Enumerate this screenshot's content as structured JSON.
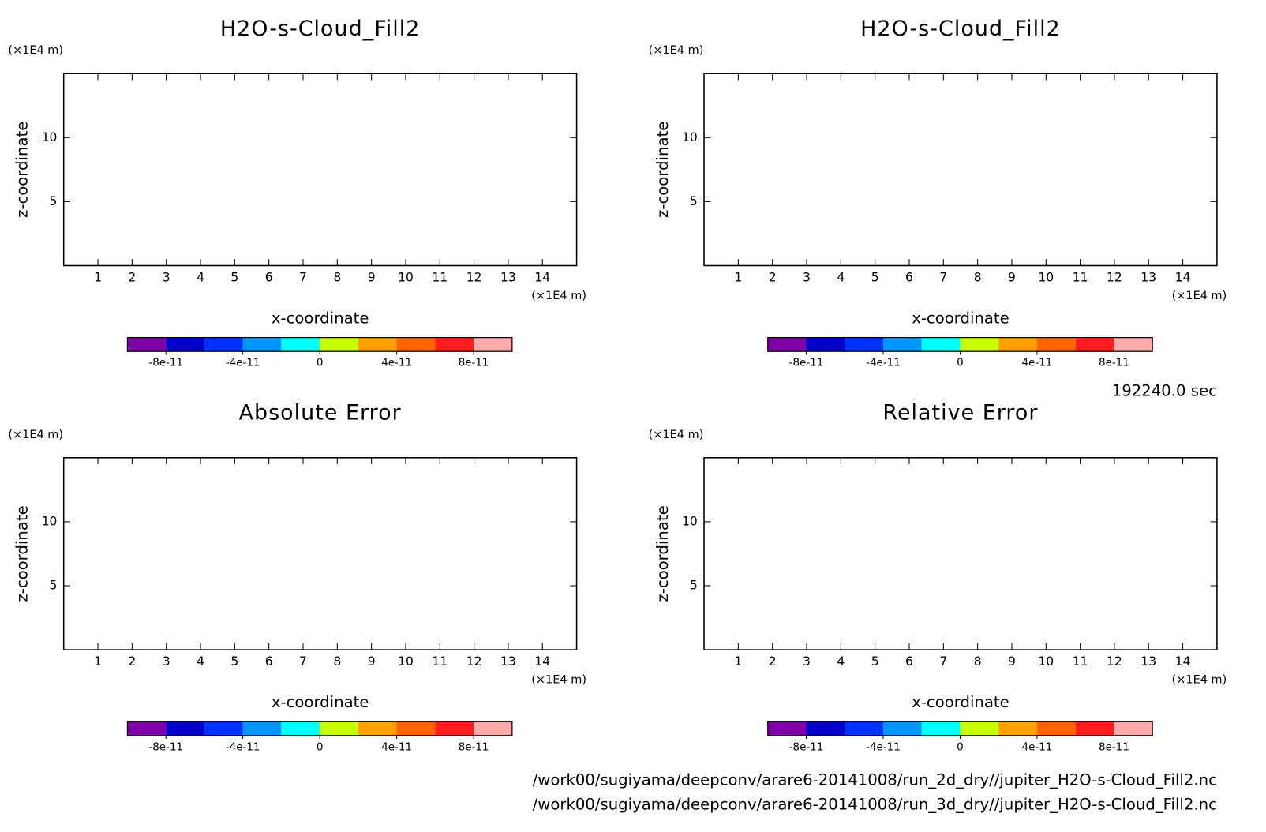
{
  "chart_data": [
    {
      "type": "contour",
      "title": "H2O-s-Cloud_Fill2",
      "xlabel": "x-coordinate",
      "ylabel": "z-coordinate",
      "x_unit": "(×1E4 m)",
      "y_unit": "(×1E4 m)",
      "xlim": [
        0,
        15
      ],
      "ylim": [
        0,
        15
      ],
      "xticks": [
        1,
        2,
        3,
        4,
        5,
        6,
        7,
        8,
        9,
        10,
        11,
        12,
        13,
        14
      ],
      "yticks": [
        5,
        10
      ],
      "colorbar": {
        "levels": [
          -1e-10,
          -8e-11,
          -6e-11,
          -4e-11,
          -2e-11,
          0,
          2e-11,
          4e-11,
          6e-11,
          8e-11,
          1e-10
        ],
        "colors": [
          "#8000a8",
          "#0000c8",
          "#0032ff",
          "#0096ff",
          "#00ffff",
          "#c8ff00",
          "#ffa000",
          "#ff6400",
          "#ff1e1e",
          "#ffaaaa"
        ],
        "ticks": [
          {
            "value": -8e-11,
            "label": "-8e-11"
          },
          {
            "value": -4e-11,
            "label": "-4e-11"
          },
          0,
          {
            "value": 4e-11,
            "label": "4e-11"
          },
          {
            "value": 8e-11,
            "label": "8e-11"
          }
        ]
      }
    },
    {
      "type": "contour",
      "title": "H2O-s-Cloud_Fill2",
      "xlabel": "x-coordinate",
      "ylabel": "z-coordinate",
      "x_unit": "(×1E4 m)",
      "y_unit": "(×1E4 m)",
      "xlim": [
        0,
        15
      ],
      "ylim": [
        0,
        15
      ],
      "xticks": [
        1,
        2,
        3,
        4,
        5,
        6,
        7,
        8,
        9,
        10,
        11,
        12,
        13,
        14
      ],
      "yticks": [
        5,
        10
      ],
      "colorbar": {
        "levels": [
          -1e-10,
          -8e-11,
          -6e-11,
          -4e-11,
          -2e-11,
          0,
          2e-11,
          4e-11,
          6e-11,
          8e-11,
          1e-10
        ],
        "colors": [
          "#8000a8",
          "#0000c8",
          "#0032ff",
          "#0096ff",
          "#00ffff",
          "#c8ff00",
          "#ffa000",
          "#ff6400",
          "#ff1e1e",
          "#ffaaaa"
        ],
        "ticks": [
          {
            "value": -8e-11,
            "label": "-8e-11"
          },
          {
            "value": -4e-11,
            "label": "-4e-11"
          },
          0,
          {
            "value": 4e-11,
            "label": "4e-11"
          },
          {
            "value": 8e-11,
            "label": "8e-11"
          }
        ]
      }
    },
    {
      "type": "contour",
      "title": "Absolute Error",
      "xlabel": "x-coordinate",
      "ylabel": "z-coordinate",
      "x_unit": "(×1E4 m)",
      "y_unit": "(×1E4 m)",
      "xlim": [
        0,
        15
      ],
      "ylim": [
        0,
        15
      ],
      "xticks": [
        1,
        2,
        3,
        4,
        5,
        6,
        7,
        8,
        9,
        10,
        11,
        12,
        13,
        14
      ],
      "yticks": [
        5,
        10
      ],
      "colorbar": {
        "levels": [
          -1e-10,
          -8e-11,
          -6e-11,
          -4e-11,
          -2e-11,
          0,
          2e-11,
          4e-11,
          6e-11,
          8e-11,
          1e-10
        ],
        "colors": [
          "#8000a8",
          "#0000c8",
          "#0032ff",
          "#0096ff",
          "#00ffff",
          "#c8ff00",
          "#ffa000",
          "#ff6400",
          "#ff1e1e",
          "#ffaaaa"
        ],
        "ticks": [
          {
            "value": -8e-11,
            "label": "-8e-11"
          },
          {
            "value": -4e-11,
            "label": "-4e-11"
          },
          0,
          {
            "value": 4e-11,
            "label": "4e-11"
          },
          {
            "value": 8e-11,
            "label": "8e-11"
          }
        ]
      }
    },
    {
      "type": "contour",
      "title": "Relative Error",
      "xlabel": "x-coordinate",
      "ylabel": "z-coordinate",
      "x_unit": "(×1E4 m)",
      "y_unit": "(×1E4 m)",
      "xlim": [
        0,
        15
      ],
      "ylim": [
        0,
        15
      ],
      "xticks": [
        1,
        2,
        3,
        4,
        5,
        6,
        7,
        8,
        9,
        10,
        11,
        12,
        13,
        14
      ],
      "yticks": [
        5,
        10
      ],
      "colorbar": {
        "levels": [
          -1e-10,
          -8e-11,
          -6e-11,
          -4e-11,
          -2e-11,
          0,
          2e-11,
          4e-11,
          6e-11,
          8e-11,
          1e-10
        ],
        "colors": [
          "#8000a8",
          "#0000c8",
          "#0032ff",
          "#0096ff",
          "#00ffff",
          "#c8ff00",
          "#ffa000",
          "#ff6400",
          "#ff1e1e",
          "#ffaaaa"
        ],
        "ticks": [
          {
            "value": -8e-11,
            "label": "-8e-11"
          },
          {
            "value": -4e-11,
            "label": "-4e-11"
          },
          0,
          {
            "value": 4e-11,
            "label": "4e-11"
          },
          {
            "value": 8e-11,
            "label": "8e-11"
          }
        ]
      }
    }
  ],
  "time_label": "192240.0 sec",
  "files": [
    "/work00/sugiyama/deepconv/arare6-20141008/run_2d_dry//jupiter_H2O-s-Cloud_Fill2.nc",
    "/work00/sugiyama/deepconv/arare6-20141008/run_3d_dry//jupiter_H2O-s-Cloud_Fill2.nc"
  ]
}
